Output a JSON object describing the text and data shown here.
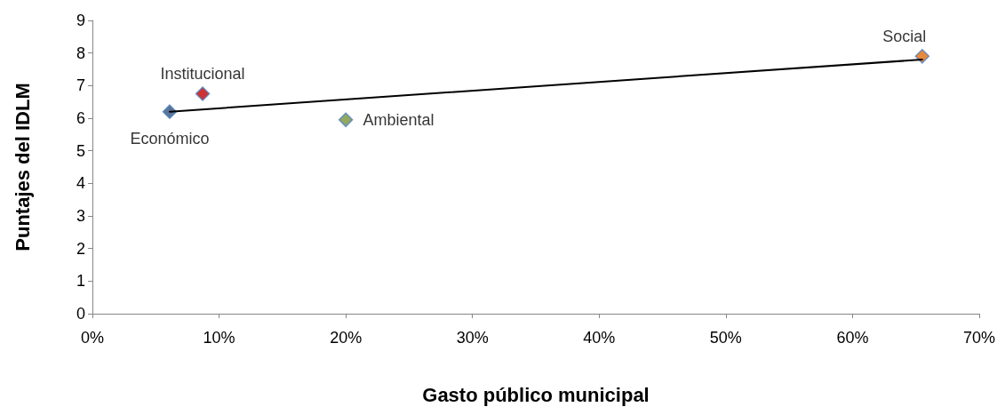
{
  "chart_data": {
    "type": "scatter",
    "xlabel": "Gasto público municipal",
    "ylabel": "Puntajes del IDLM",
    "xlim": [
      0,
      70
    ],
    "xticks": [
      {
        "value": 0,
        "label": "0%"
      },
      {
        "value": 10,
        "label": "10%"
      },
      {
        "value": 20,
        "label": "20%"
      },
      {
        "value": 30,
        "label": "30%"
      },
      {
        "value": 40,
        "label": "40%"
      },
      {
        "value": 50,
        "label": "50%"
      },
      {
        "value": 60,
        "label": "60%"
      },
      {
        "value": 70,
        "label": "70%"
      }
    ],
    "ylim": [
      0,
      9
    ],
    "yticks": [
      0,
      1,
      2,
      3,
      4,
      5,
      6,
      7,
      8,
      9
    ],
    "grid": false,
    "legend": false,
    "marker": "diamond",
    "series": [
      {
        "name": "Económico",
        "color": "#2f5280",
        "x": [
          6.1
        ],
        "values": [
          6.2
        ]
      },
      {
        "name": "Institucional",
        "color": "#c00000",
        "x": [
          8.7
        ],
        "values": [
          6.75
        ]
      },
      {
        "name": "Ambiental",
        "color": "#77933c",
        "x": [
          20.0
        ],
        "values": [
          5.95
        ]
      },
      {
        "name": "Social",
        "color": "#e46c0a",
        "x": [
          65.5
        ],
        "values": [
          7.9
        ]
      },
      {
        "type": "line",
        "color": "#000000",
        "marker": "none",
        "line_style": "solid",
        "x": [
          6.1,
          65.5
        ],
        "values": [
          6.2,
          7.8
        ]
      }
    ]
  }
}
